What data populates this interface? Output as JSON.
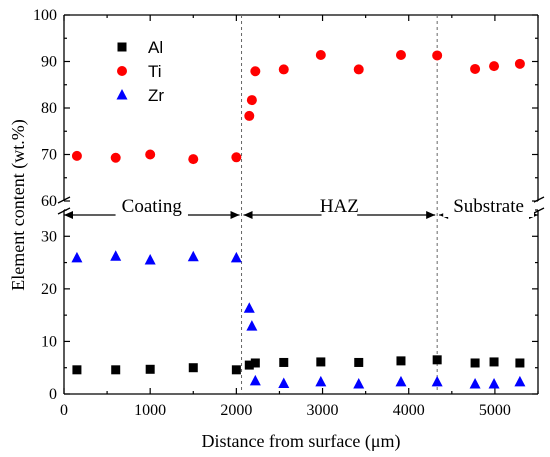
{
  "chart_data": {
    "type": "scatter",
    "title": "",
    "xlabel": "Distance from surface (μm)",
    "ylabel": "Element content (wt.%)",
    "xlim": [
      0,
      5500
    ],
    "ylim_lower": [
      0,
      35
    ],
    "ylim_upper": [
      60,
      100
    ],
    "axis_break": true,
    "grid": false,
    "legend_position": "top-left",
    "x_ticks": [
      0,
      1000,
      2000,
      3000,
      4000,
      5000
    ],
    "y_ticks_lower": [
      0,
      10,
      20,
      30
    ],
    "y_ticks_upper": [
      60,
      70,
      80,
      90,
      100
    ],
    "regions": [
      {
        "label": "Coating",
        "x_start": 0,
        "x_end": 2060
      },
      {
        "label": "HAZ",
        "x_start": 2060,
        "x_end": 4330
      },
      {
        "label": "Substrate",
        "x_start": 4330,
        "x_end": 5500
      }
    ],
    "series": [
      {
        "name": "Al",
        "marker": "square",
        "color": "#000000",
        "x": [
          150,
          600,
          1000,
          1500,
          2000,
          2150,
          2220,
          2550,
          2980,
          3420,
          3910,
          4330,
          4770,
          4990,
          5290
        ],
        "y": [
          4.6,
          4.6,
          4.7,
          5.0,
          4.6,
          5.5,
          5.9,
          6.0,
          6.1,
          6.0,
          6.3,
          6.5,
          5.9,
          6.1,
          5.9
        ]
      },
      {
        "name": "Ti",
        "marker": "circle",
        "color": "#ff0000",
        "x": [
          150,
          600,
          1000,
          1500,
          2000,
          2150,
          2180,
          2220,
          2550,
          2980,
          3420,
          3910,
          4330,
          4770,
          4990,
          5290
        ],
        "y": [
          69.7,
          69.3,
          70.0,
          69.0,
          69.4,
          78.3,
          81.7,
          87.9,
          88.3,
          91.4,
          88.3,
          91.4,
          91.3,
          88.4,
          89.0,
          89.5
        ]
      },
      {
        "name": "Zr",
        "marker": "triangle",
        "color": "#0000ff",
        "x": [
          150,
          600,
          1000,
          1500,
          2000,
          2150,
          2180,
          2220,
          2550,
          2980,
          3420,
          3910,
          4330,
          4770,
          4990,
          5290
        ],
        "y": [
          25.9,
          26.2,
          25.5,
          26.1,
          25.9,
          16.3,
          12.9,
          2.5,
          2.0,
          2.3,
          1.9,
          2.3,
          2.3,
          1.9,
          1.9,
          2.3
        ]
      }
    ]
  }
}
